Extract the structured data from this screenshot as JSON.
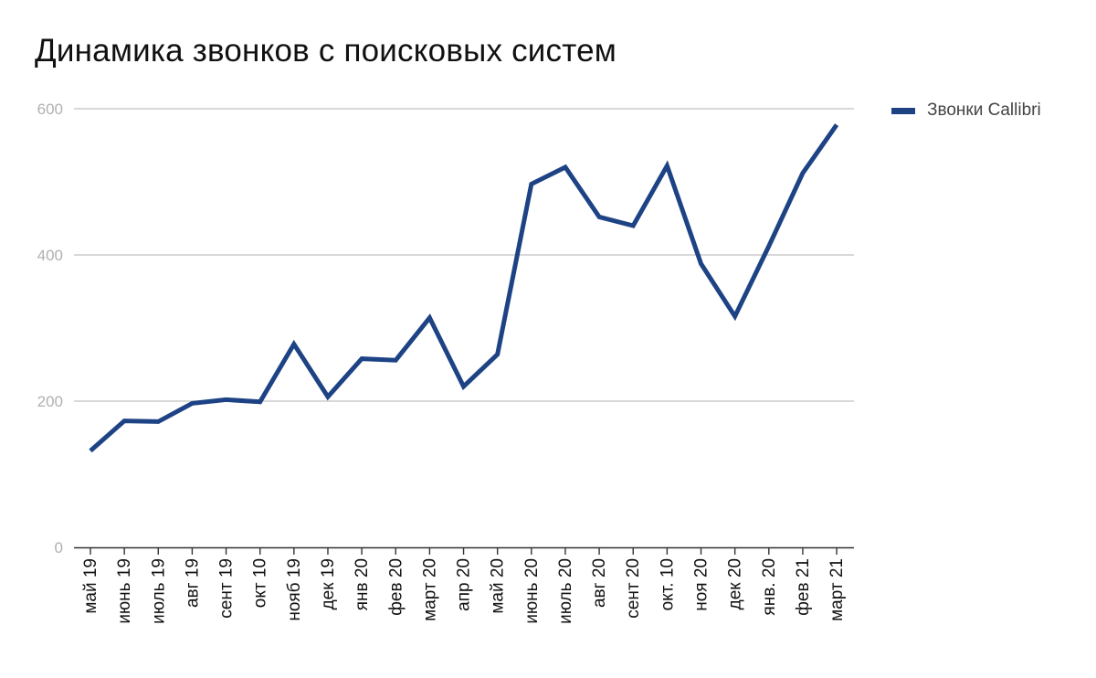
{
  "chart_data": {
    "type": "line",
    "title": "Динамика звонков с поисковых систем",
    "xlabel": "",
    "ylabel": "",
    "categories": [
      "май 19",
      "июнь 19",
      "июль 19",
      "авг 19",
      "сент 19",
      "окт 10",
      "нояб 19",
      "дек 19",
      "янв 20",
      "фев 20",
      "март 20",
      "апр 20",
      "май 20",
      "июнь 20",
      "июль 20",
      "авг 20",
      "сент 20",
      "окт. 10",
      "ноя 20",
      "дек 20",
      "янв. 20",
      "фев 21",
      "март 21"
    ],
    "series": [
      {
        "name": "Звонки Callibri",
        "color": "#1d4385",
        "values": [
          132,
          173,
          172,
          197,
          202,
          199,
          278,
          206,
          258,
          256,
          314,
          220,
          264,
          497,
          520,
          452,
          440,
          522,
          388,
          316,
          412,
          512,
          578
        ]
      }
    ],
    "ylim": [
      0,
      600
    ],
    "yticks": [
      0,
      200,
      400,
      600
    ],
    "grid": true,
    "legend_position": "right-top",
    "colors": {
      "line": "#1d4385",
      "grid": "#cccccc",
      "axis": "#333333",
      "ytick_text": "#b0b0b0",
      "xtick_text": "#111111"
    }
  }
}
